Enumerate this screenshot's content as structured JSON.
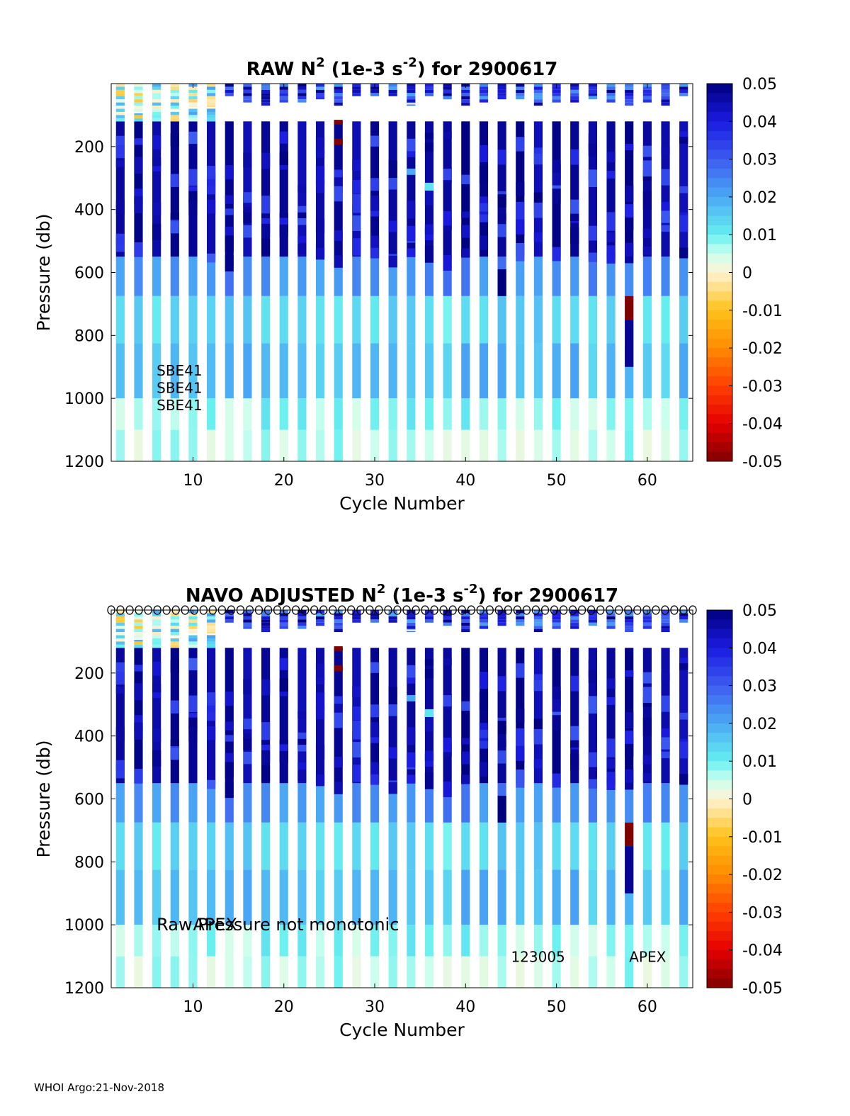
{
  "footer": "WHOI Argo:21-Nov-2018",
  "colormap": {
    "stops": [
      {
        "v": -0.05,
        "c": "#800000"
      },
      {
        "v": -0.04,
        "c": "#e60000"
      },
      {
        "v": -0.03,
        "c": "#ff4000"
      },
      {
        "v": -0.02,
        "c": "#ff8c00"
      },
      {
        "v": -0.01,
        "c": "#ffc21a"
      },
      {
        "v": 0.0,
        "c": "#fff3d6"
      },
      {
        "v": 0.005,
        "c": "#ccffee"
      },
      {
        "v": 0.01,
        "c": "#66f0f0"
      },
      {
        "v": 0.02,
        "c": "#4aa8f5"
      },
      {
        "v": 0.03,
        "c": "#3d5cf0"
      },
      {
        "v": 0.04,
        "c": "#1a1ae0"
      },
      {
        "v": 0.05,
        "c": "#00007f"
      }
    ]
  },
  "chart_data": [
    {
      "type": "heatmap",
      "title": "RAW N",
      "title_sup": "2",
      "title_mid": " (1e-3 s",
      "title_sup2": "-2",
      "title_end": ") for 2900617",
      "xlabel": "Cycle Number",
      "ylabel": "Pressure (db)",
      "xlim": [
        1,
        65
      ],
      "ylim": [
        1200,
        0
      ],
      "xticks": [
        10,
        20,
        30,
        40,
        50,
        60
      ],
      "yticks": [
        200,
        400,
        600,
        800,
        1000,
        1200
      ],
      "clim": [
        -0.05,
        0.05
      ],
      "cticks": [
        "0.05",
        "0.04",
        "0.03",
        "0.02",
        "0.01",
        "0",
        "-0.01",
        "-0.02",
        "-0.03",
        "-0.04",
        "-0.05"
      ],
      "annotations": [
        {
          "text": "SBE41",
          "x": 6,
          "y": 910
        },
        {
          "text": "SBE41",
          "x": 6,
          "y": 965
        },
        {
          "text": "SBE41",
          "x": 6,
          "y": 1020
        }
      ],
      "cycles": [
        2,
        4,
        6,
        8,
        10,
        12,
        14,
        16,
        18,
        20,
        22,
        24,
        26,
        28,
        30,
        32,
        34,
        36,
        38,
        40,
        42,
        44,
        46,
        48,
        50,
        52,
        54,
        56,
        58,
        60,
        62,
        64
      ]
    },
    {
      "type": "heatmap",
      "title": "NAVO  ADJUSTED N",
      "title_sup": "2",
      "title_mid": " (1e-3 s",
      "title_sup2": "-2",
      "title_end": ") for 2900617",
      "xlabel": "Cycle Number",
      "ylabel": "Pressure (db)",
      "xlim": [
        1,
        65
      ],
      "ylim": [
        1200,
        0
      ],
      "xticks": [
        10,
        20,
        30,
        40,
        50,
        60
      ],
      "yticks": [
        200,
        400,
        600,
        800,
        1000,
        1200
      ],
      "clim": [
        -0.05,
        0.05
      ],
      "cticks": [
        "0.05",
        "0.04",
        "0.03",
        "0.02",
        "0.01",
        "0",
        "-0.01",
        "-0.02",
        "-0.03",
        "-0.04",
        "-0.05"
      ],
      "markers": {
        "symbol": "o",
        "y": 0,
        "x_from": 1,
        "x_to": 65,
        "count": 64
      },
      "annotations": [
        {
          "text": "Raw Pressure not monotonic",
          "x": 6,
          "y": 1000,
          "size": "large"
        },
        {
          "text": "APEX",
          "x": 10,
          "y": 1000,
          "size": "large"
        },
        {
          "text": "123005",
          "x": 45,
          "y": 1100
        },
        {
          "text": "APEX",
          "x": 58,
          "y": 1100
        }
      ],
      "cycles": [
        2,
        4,
        6,
        8,
        10,
        12,
        14,
        16,
        18,
        20,
        22,
        24,
        26,
        28,
        30,
        32,
        34,
        36,
        38,
        40,
        42,
        44,
        46,
        48,
        50,
        52,
        54,
        56,
        58,
        60,
        62,
        64
      ]
    }
  ],
  "profile": {
    "layers": [
      {
        "top": 1100,
        "bottom": 1200,
        "v": 0.006
      },
      {
        "top": 1000,
        "bottom": 1100,
        "v": 0.008
      },
      {
        "top": 825,
        "bottom": 1000,
        "v": 0.017
      },
      {
        "top": 675,
        "bottom": 825,
        "v": 0.013
      },
      {
        "top": 550,
        "bottom": 675,
        "v": 0.024
      },
      {
        "top": 120,
        "bottom": 550,
        "v": 0.047
      }
    ],
    "shallow_top": 120,
    "deep_top_overrides": [
      {
        "cycle": 58,
        "top": 675,
        "bottom": 750,
        "v": -0.05
      },
      {
        "cycle": 58,
        "top": 750,
        "bottom": 900,
        "v": 0.048
      },
      {
        "cycle": 26,
        "top": 115,
        "bottom": 130,
        "v": -0.05
      },
      {
        "cycle": 26,
        "top": 175,
        "bottom": 195,
        "v": -0.05
      },
      {
        "cycle": 36,
        "top": 315,
        "bottom": 340,
        "v": 0.012
      },
      {
        "cycle": 34,
        "top": 270,
        "bottom": 290,
        "v": 0.02
      },
      {
        "cycle": 44,
        "top": 590,
        "bottom": 675,
        "v": 0.05
      }
    ]
  }
}
